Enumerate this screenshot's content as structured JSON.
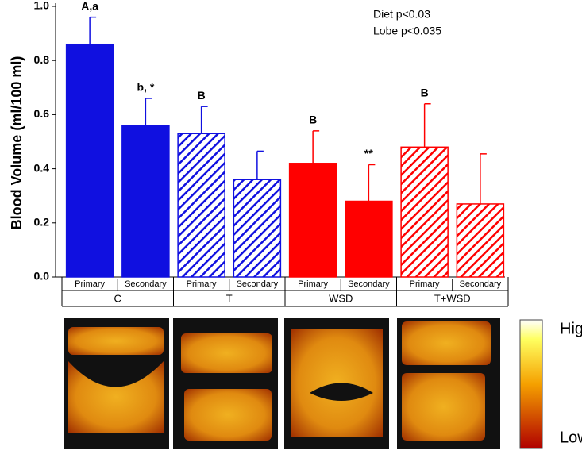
{
  "chart_data": {
    "type": "bar",
    "ylabel": "Blood Volume (ml/100 ml)",
    "categories": [
      "Primary",
      "Secondary",
      "Primary",
      "Secondary",
      "Primary",
      "Secondary",
      "Primary",
      "Secondary"
    ],
    "groups": [
      "C",
      "T",
      "WSD",
      "T+WSD"
    ],
    "values": [
      0.86,
      0.56,
      0.53,
      0.36,
      0.42,
      0.28,
      0.48,
      0.27
    ],
    "errors": [
      0.1,
      0.1,
      0.1,
      0.105,
      0.12,
      0.135,
      0.16,
      0.185
    ],
    "annotations": [
      "A,a",
      "b, *",
      "B",
      null,
      "B",
      "**",
      "B",
      null
    ],
    "colors": [
      "#1010e0",
      "#1010e0",
      "#1010e0",
      "#1010e0",
      "#ff0000",
      "#ff0000",
      "#ff0000",
      "#ff0000"
    ],
    "hatched": [
      false,
      false,
      true,
      true,
      false,
      false,
      true,
      true
    ],
    "stats": [
      "Diet p<0.03",
      "Lobe p<0.035"
    ],
    "colorbar": [
      "High",
      "Low"
    ],
    "ylim": [
      0,
      1.0
    ],
    "yticks": [
      {
        "value": 0,
        "label": "0.0"
      },
      0.2,
      0.4,
      0.6,
      0.8,
      {
        "value": 1.0,
        "label": "1.0"
      }
    ]
  }
}
